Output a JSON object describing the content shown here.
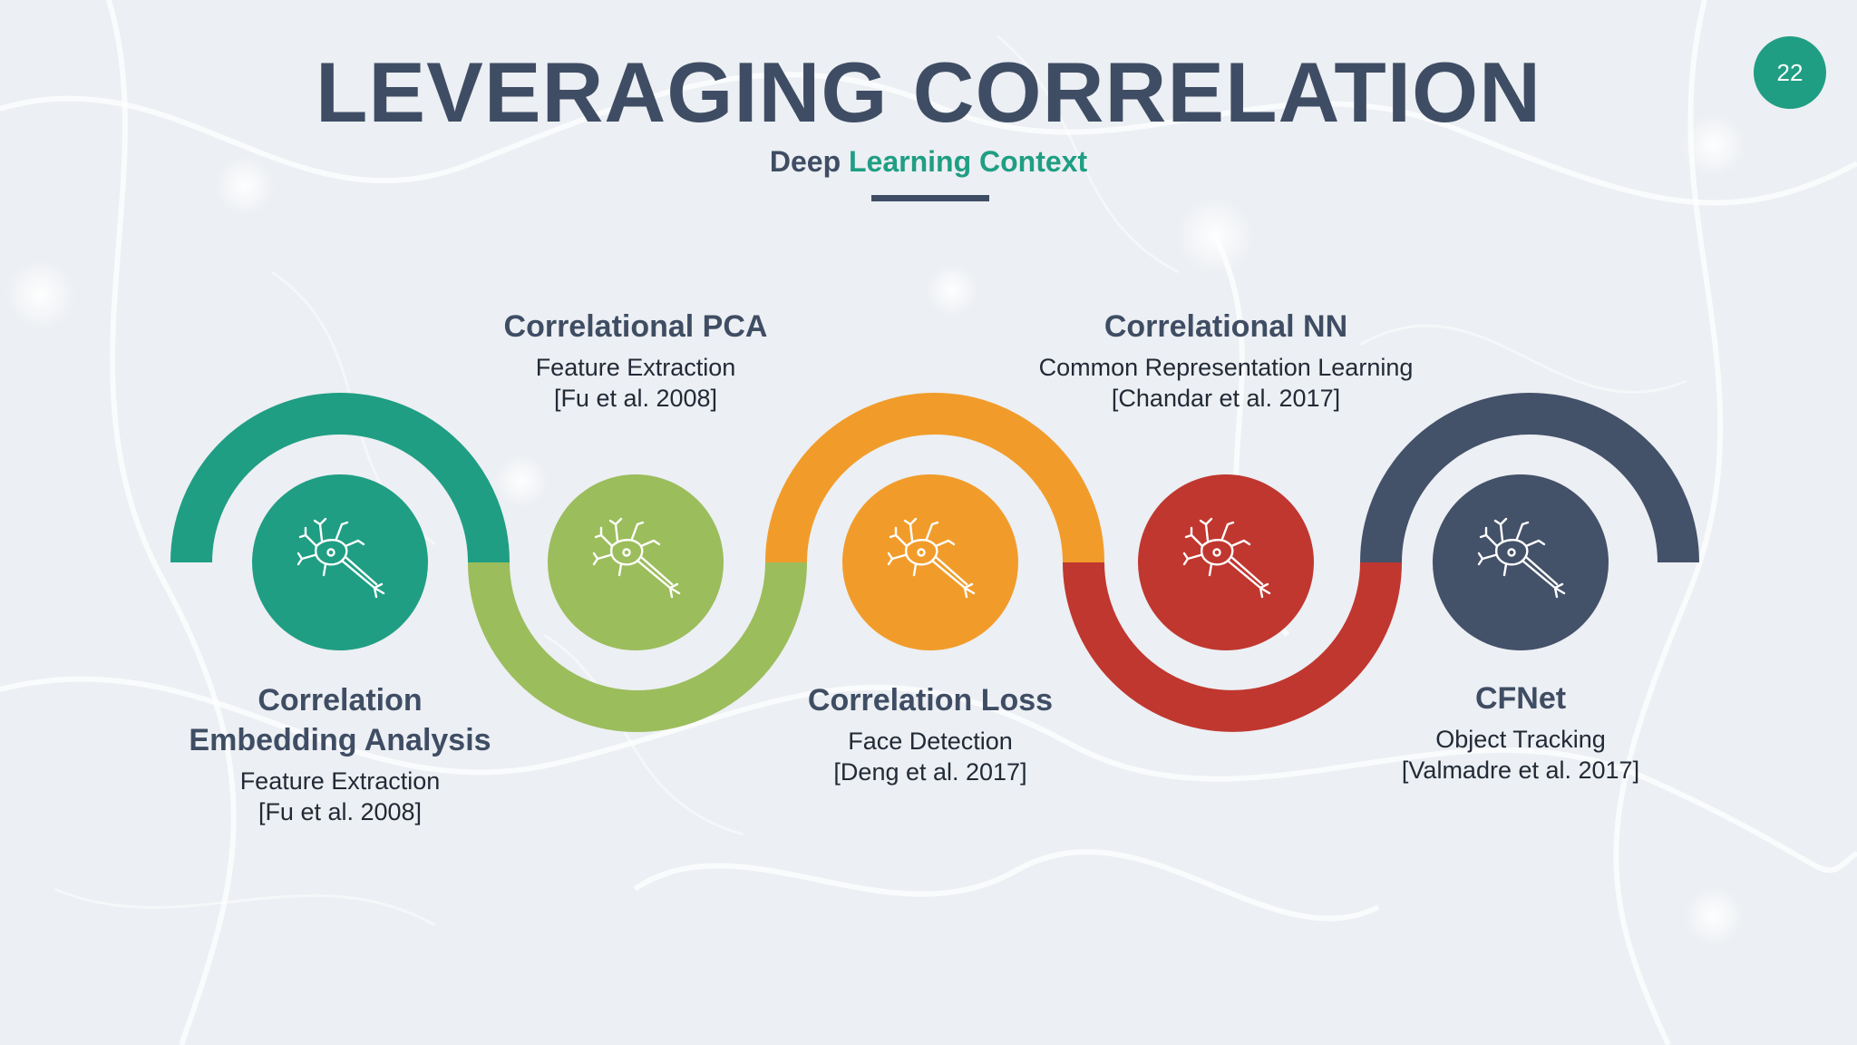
{
  "slide": {
    "title": "LEVERAGING CORRELATION",
    "subtitle_prefix": "Deep",
    "subtitle_accent": "Learning Context",
    "page_number": "22"
  },
  "colors": {
    "teal": "#1f9e83",
    "lime": "#9bbd5c",
    "orange": "#f19c2a",
    "red": "#c0372f",
    "slate": "#435169",
    "text_dark": "#3f4d64"
  },
  "stages": [
    {
      "heading_line1": "Correlation",
      "heading_line2": "Embedding Analysis",
      "detail": "Feature Extraction",
      "citation": "[Fu et al. 2008]",
      "icon": "neuron-icon",
      "color": "#1f9e83"
    },
    {
      "heading": "Correlational PCA",
      "detail": "Feature Extraction",
      "citation": "[Fu et al. 2008]",
      "icon": "neuron-icon",
      "color": "#9bbd5c"
    },
    {
      "heading": "Correlation Loss",
      "detail": "Face Detection",
      "citation": "[Deng et al. 2017]",
      "icon": "neuron-icon",
      "color": "#f19c2a"
    },
    {
      "heading": "Correlational NN",
      "detail": "Common Representation Learning",
      "citation": "[Chandar et al. 2017]",
      "icon": "neuron-icon",
      "color": "#c0372f"
    },
    {
      "heading": "CFNet",
      "detail": "Object Tracking",
      "citation": "[Valmadre et al. 2017]",
      "icon": "neuron-icon",
      "color": "#435169"
    }
  ]
}
